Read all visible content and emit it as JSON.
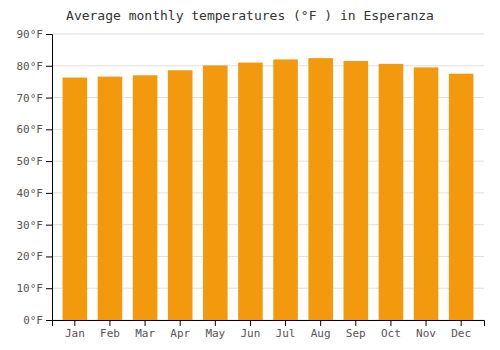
{
  "chart_data": {
    "type": "bar",
    "title": "Average monthly temperatures (°F ) in Esperanza",
    "categories": [
      "Jan",
      "Feb",
      "Mar",
      "Apr",
      "May",
      "Jun",
      "Jul",
      "Aug",
      "Sep",
      "Oct",
      "Nov",
      "Dec"
    ],
    "values": [
      76.3,
      76.6,
      77.0,
      78.6,
      80.1,
      81.0,
      82.0,
      82.4,
      81.5,
      80.6,
      79.5,
      77.5
    ],
    "color": "#f2990d",
    "ylim": [
      0,
      90
    ],
    "yticks": [
      {
        "value": 0,
        "label": "0°F"
      },
      {
        "value": 10,
        "label": "10°F"
      },
      {
        "value": 20,
        "label": "20°F"
      },
      {
        "value": 30,
        "label": "30°F"
      },
      {
        "value": 40,
        "label": "40°F"
      },
      {
        "value": 50,
        "label": "50°F"
      },
      {
        "value": 60,
        "label": "60°F"
      },
      {
        "value": 70,
        "label": "70°F"
      },
      {
        "value": 80,
        "label": "80°F"
      },
      {
        "value": 90,
        "label": "90°F"
      }
    ],
    "grid": true
  }
}
